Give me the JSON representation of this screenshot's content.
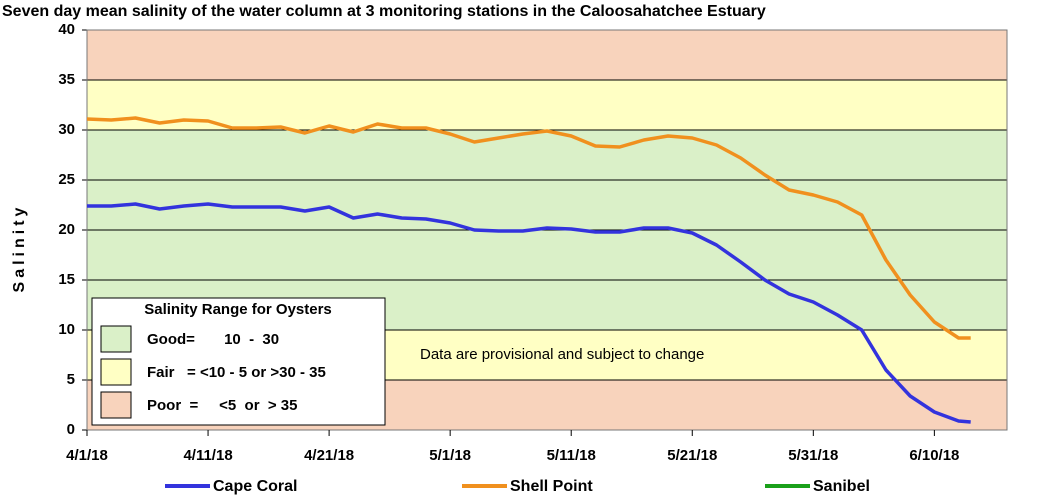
{
  "chart_data": {
    "type": "line",
    "title": "Seven day mean salinity of the water column at 3 monitoring stations in the Caloosahatchee Estuary",
    "y_label": "Salinity",
    "annotation": "Data are provisional and subject to change",
    "x": [
      "2018-04-01",
      "2018-04-03",
      "2018-04-05",
      "2018-04-07",
      "2018-04-09",
      "2018-04-11",
      "2018-04-13",
      "2018-04-15",
      "2018-04-17",
      "2018-04-19",
      "2018-04-21",
      "2018-04-23",
      "2018-04-25",
      "2018-04-27",
      "2018-04-29",
      "2018-05-01",
      "2018-05-03",
      "2018-05-05",
      "2018-05-07",
      "2018-05-09",
      "2018-05-11",
      "2018-05-13",
      "2018-05-15",
      "2018-05-17",
      "2018-05-19",
      "2018-05-21",
      "2018-05-23",
      "2018-05-25",
      "2018-05-27",
      "2018-05-29",
      "2018-05-31",
      "2018-06-02",
      "2018-06-04",
      "2018-06-06",
      "2018-06-08",
      "2018-06-10",
      "2018-06-12",
      "2018-06-13"
    ],
    "series": [
      {
        "name": "Cape Coral",
        "color": "#3333dd",
        "values": [
          22.4,
          22.4,
          22.6,
          22.1,
          22.4,
          22.6,
          22.3,
          22.3,
          22.3,
          21.9,
          22.3,
          21.2,
          21.6,
          21.2,
          21.1,
          20.7,
          20.0,
          19.9,
          19.9,
          20.2,
          20.1,
          19.8,
          19.8,
          20.2,
          20.2,
          19.7,
          18.5,
          16.8,
          15.0,
          13.6,
          12.8,
          11.5,
          10.0,
          6.0,
          3.4,
          1.8,
          0.9,
          0.8
        ]
      },
      {
        "name": "Shell Point",
        "color": "#f0901e",
        "values": [
          31.1,
          31.0,
          31.2,
          30.7,
          31.0,
          30.9,
          30.2,
          30.2,
          30.3,
          29.7,
          30.4,
          29.8,
          30.6,
          30.2,
          30.2,
          29.6,
          28.8,
          29.2,
          29.6,
          29.9,
          29.4,
          28.4,
          28.3,
          29.0,
          29.4,
          29.2,
          28.5,
          27.2,
          25.5,
          24.0,
          23.5,
          22.8,
          21.5,
          17.0,
          13.5,
          10.8,
          9.2,
          9.2
        ]
      },
      {
        "name": "Sanibel",
        "color": "#1aa01a",
        "values": [
          null,
          null,
          null,
          null,
          null,
          null,
          null,
          null,
          null,
          null,
          null,
          null,
          null,
          null,
          null,
          null,
          null,
          null,
          null,
          null,
          null,
          null,
          null,
          null,
          null,
          null,
          null,
          null,
          null,
          null,
          null,
          null,
          null,
          null,
          null,
          null,
          null,
          null
        ]
      }
    ],
    "xlim": [
      "2018-04-01",
      "2018-06-16"
    ],
    "xticks": [
      {
        "value": "2018-04-01",
        "label": "4/1/18"
      },
      {
        "value": "2018-04-11",
        "label": "4/11/18"
      },
      {
        "value": "2018-04-21",
        "label": "4/21/18"
      },
      {
        "value": "2018-05-01",
        "label": "5/1/18"
      },
      {
        "value": "2018-05-11",
        "label": "5/11/18"
      },
      {
        "value": "2018-05-21",
        "label": "5/21/18"
      },
      {
        "value": "2018-05-31",
        "label": "5/31/18"
      },
      {
        "value": "2018-06-10",
        "label": "6/10/18"
      }
    ],
    "ylim": [
      0,
      40
    ],
    "yticks": [
      0,
      5,
      10,
      15,
      20,
      25,
      30,
      35,
      40
    ],
    "grid": true,
    "legend": "bottom",
    "bands": [
      {
        "from": 0,
        "to": 5,
        "color": "#f8d3bc"
      },
      {
        "from": 5,
        "to": 10,
        "color": "#ffffc4"
      },
      {
        "from": 10,
        "to": 30,
        "color": "#daf0c8"
      },
      {
        "from": 30,
        "to": 35,
        "color": "#ffffc4"
      },
      {
        "from": 35,
        "to": 40,
        "color": "#f8d3bc"
      }
    ],
    "range_legend": {
      "title": "Salinity Range for Oysters",
      "items": [
        {
          "label": "Good=       10  -  30",
          "color": "#daf0c8"
        },
        {
          "label": "Fair   = <10 - 5 or >30 - 35",
          "color": "#ffffc4"
        },
        {
          "label": "Poor  =     <5  or  > 35",
          "color": "#f8d3bc"
        }
      ]
    }
  }
}
